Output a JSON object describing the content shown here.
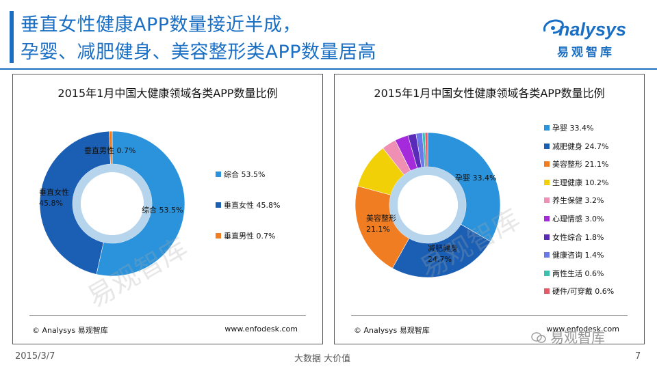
{
  "header": {
    "title_line1": "垂直女性健康APP数量接近半成，",
    "title_line2": "孕婴、减肥健身、美容整形类APP数量居高"
  },
  "logo": {
    "brand_en": "nalysys",
    "brand_cn": "易观智库"
  },
  "watermark": {
    "text_left": "易观智库",
    "text_right": "易观智库"
  },
  "left_panel": {
    "source": "© Analysys 易观智库",
    "url": "www.enfodesk.com"
  },
  "right_panel": {
    "source": "© Analysys 易观智库",
    "url": "www.enfodesk.com"
  },
  "footer": {
    "date": "2015/3/7",
    "slogan": "大数据    大价值",
    "page_number": "7",
    "wechat_label": "易观智库"
  },
  "colors": {
    "accent": "#1a6fc4",
    "inner_ring": "#a9cde9"
  },
  "chart_data": [
    {
      "type": "pie",
      "title": "2015年1月中国大健康领域各类APP数量比例",
      "categories": [
        "综合",
        "垂直女性",
        "垂直男性"
      ],
      "values": [
        53.5,
        45.8,
        0.7
      ],
      "value_labels": [
        "53.5%",
        "45.8%",
        "0.7%"
      ],
      "colors": [
        "#2a93dc",
        "#1a5fb4",
        "#f07d22"
      ],
      "legend_labels": [
        "综合 53.5%",
        "垂直女性 45.8%",
        "垂直男性 0.7%"
      ],
      "legend_placement": "right",
      "donut": true
    },
    {
      "type": "pie",
      "title": "2015年1月中国女性健康领域各类APP数量比例",
      "categories": [
        "孕婴",
        "减肥健身",
        "美容整形",
        "生理健康",
        "养生保健",
        "心理情感",
        "女性综合",
        "健康咨询",
        "两性生活",
        "硬件/可穿戴"
      ],
      "values": [
        33.4,
        24.7,
        21.1,
        10.2,
        3.2,
        3.0,
        1.8,
        1.4,
        0.6,
        0.6
      ],
      "value_labels": [
        "33.4%",
        "24.7%",
        "21.1%",
        "10.2%",
        "3.2%",
        "3.0%",
        "1.8%",
        "1.4%",
        "0.6%",
        "0.6%"
      ],
      "colors": [
        "#2a93dc",
        "#1a5fb4",
        "#f07d22",
        "#f2d007",
        "#ef8fb4",
        "#a52adc",
        "#5a2ab8",
        "#6a78e8",
        "#3cbfae",
        "#e35b6a"
      ],
      "legend_labels": [
        "孕婴 33.4%",
        "减肥健身 24.7%",
        "美容整形 21.1%",
        "生理健康 10.2%",
        "养生保健 3.2%",
        "心理情感 3.0%",
        "女性综合 1.8%",
        "健康咨询 1.4%",
        "两性生活 0.6%",
        "硬件/可穿戴 0.6%"
      ],
      "legend_placement": "right",
      "donut": true
    }
  ]
}
